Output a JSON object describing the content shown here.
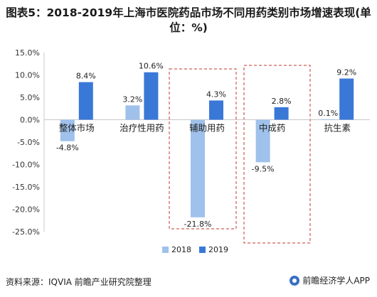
{
  "title": "图表5：2018-2019年上海市医院药品市场不同用药类别市场增速表现(单位：%)",
  "source": "资料来源：IQVIA 前瞻产业研究院整理",
  "brand": "前瞻经济学人APP",
  "colors": {
    "s2018": "#9fc1eb",
    "s2019": "#3a78d8",
    "highlight_box": "#c0392b",
    "axis": "#c8c8c8"
  },
  "chart_data": {
    "type": "bar",
    "title": "图表5：2018-2019年上海市医院药品市场不同用药类别市场增速表现(单位：%)",
    "categories": [
      "整体市场",
      "治疗性用药",
      "辅助用药",
      "中成药",
      "抗生素"
    ],
    "category_display": [
      "整体市场",
      "治疗性用药",
      "辅助用药",
      "中成药",
      "抗生素"
    ],
    "series": [
      {
        "name": "2018",
        "values": [
          -4.8,
          3.2,
          -21.8,
          -9.5,
          0.1
        ],
        "labels": [
          "-4.8%",
          "3.2%",
          "-21.8%",
          "-9.5%",
          "0.1%"
        ]
      },
      {
        "name": "2019",
        "values": [
          8.4,
          10.6,
          4.3,
          2.8,
          9.2
        ],
        "labels": [
          "8.4%",
          "10.6%",
          "4.3%",
          "2.8%",
          "9.2%"
        ]
      }
    ],
    "ylim": [
      -25,
      15
    ],
    "yticks": [
      15,
      10,
      5,
      0,
      -5,
      -10,
      -15,
      -20,
      -25
    ],
    "ytick_labels": [
      "15.0%",
      "10.0%",
      "5.0%",
      "0.0%",
      "-5.0%",
      "-10.0%",
      "-15.0%",
      "-20.0%",
      "-25.0%"
    ],
    "highlighted_categories": [
      "辅助用药",
      "中成药"
    ],
    "grid": false,
    "legend": "bottom-center"
  }
}
